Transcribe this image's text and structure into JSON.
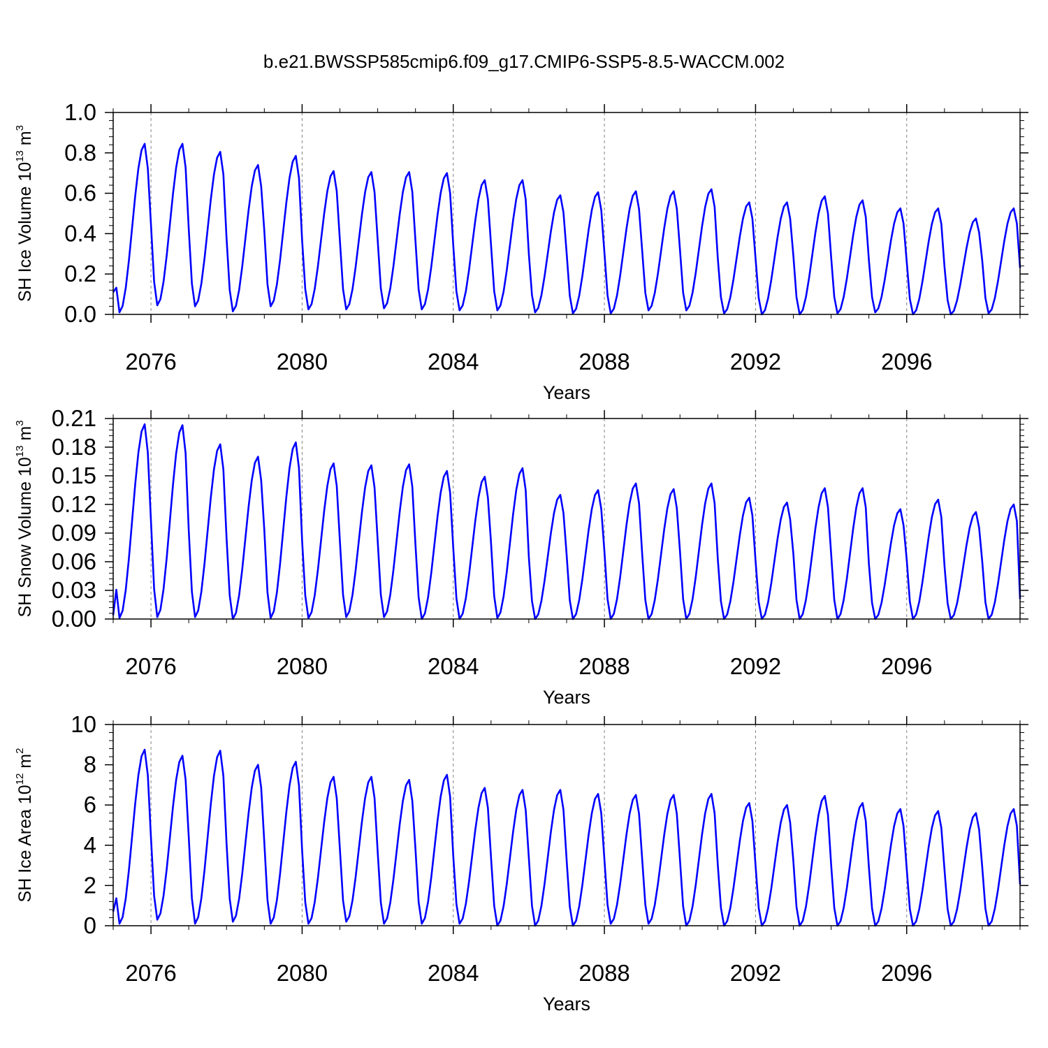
{
  "figure": {
    "title": "b.e21.BWSSP585cmip6.f09_g17.CMIP6-SSP5-8.5-WACCM.002"
  },
  "colors": {
    "series": "#0000ff",
    "axis": "#000000",
    "grid": "#808080",
    "background": "#ffffff"
  },
  "chart_data": [
    {
      "type": "line",
      "title": "b.e21.BWSSP585cmip6.f09_g17.CMIP6-SSP5-8.5-WACCM.002",
      "xlabel": "Years",
      "ylabel": {
        "prefix": "SH Ice Volume 10",
        "exponent": "13",
        "unit": " m",
        "unit_exponent": "3"
      },
      "xlim": [
        2075,
        2099
      ],
      "ylim": [
        0,
        1.0
      ],
      "x_ticks": [
        2076,
        2080,
        2084,
        2088,
        2092,
        2096
      ],
      "y_ticks": [
        "0.0",
        "0.2",
        "0.4",
        "0.6",
        "0.8",
        "1.0"
      ],
      "grid": "vertical dashed at major x ticks",
      "x_start": 2075.0,
      "x_step_months": 1,
      "annual_peaks": [
        0.845,
        0.845,
        0.805,
        0.74,
        0.785,
        0.71,
        0.705,
        0.705,
        0.7,
        0.665,
        0.665,
        0.59,
        0.605,
        0.61,
        0.61,
        0.62,
        0.555,
        0.555,
        0.585,
        0.565,
        0.525,
        0.525,
        0.475,
        0.525
      ],
      "annual_minima": [
        0.01,
        0.045,
        0.04,
        0.015,
        0.04,
        0.025,
        0.025,
        0.03,
        0.025,
        0.02,
        0.02,
        0.01,
        0.005,
        0.005,
        0.02,
        0.02,
        0.005,
        0.0,
        0.0,
        0.005,
        0.01,
        0.0,
        0.0,
        0.005
      ],
      "first_value": 0.11,
      "last_value": 0.23
    },
    {
      "type": "line",
      "xlabel": "Years",
      "ylabel": {
        "prefix": "SH Snow Volume 10",
        "exponent": "13",
        "unit": " m",
        "unit_exponent": "3"
      },
      "xlim": [
        2075,
        2099
      ],
      "ylim": [
        0,
        0.21
      ],
      "x_ticks": [
        2076,
        2080,
        2084,
        2088,
        2092,
        2096
      ],
      "y_ticks": [
        "0.00",
        "0.03",
        "0.06",
        "0.09",
        "0.12",
        "0.15",
        "0.18",
        "0.21"
      ],
      "grid": "vertical dashed at major x ticks",
      "x_start": 2075.0,
      "x_step_months": 1,
      "annual_peaks": [
        0.204,
        0.203,
        0.183,
        0.17,
        0.185,
        0.163,
        0.161,
        0.162,
        0.155,
        0.149,
        0.158,
        0.13,
        0.135,
        0.142,
        0.136,
        0.142,
        0.127,
        0.122,
        0.137,
        0.137,
        0.115,
        0.125,
        0.112,
        0.12
      ],
      "annual_minima": [
        0.001,
        0.002,
        0.002,
        0.0,
        0.001,
        0.001,
        0.002,
        0.002,
        0.0,
        0.0,
        0.001,
        0.0,
        0.0,
        0.0,
        0.0,
        0.0,
        0.0,
        0.0,
        0.0,
        0.0,
        0.0,
        0.0,
        0.0,
        0.0
      ],
      "first_value": 0.004,
      "last_value": 0.021
    },
    {
      "type": "line",
      "xlabel": "Years",
      "ylabel": {
        "prefix": "SH Ice Area 10",
        "exponent": "12",
        "unit": " m",
        "unit_exponent": "2"
      },
      "xlim": [
        2075,
        2099
      ],
      "ylim": [
        0,
        10
      ],
      "x_ticks": [
        2076,
        2080,
        2084,
        2088,
        2092,
        2096
      ],
      "y_ticks": [
        "0",
        "2",
        "4",
        "6",
        "8",
        "10"
      ],
      "grid": "vertical dashed at major x ticks",
      "x_start": 2075.0,
      "x_step_months": 1,
      "annual_peaks": [
        8.75,
        8.45,
        8.7,
        8.0,
        8.15,
        7.4,
        7.4,
        7.25,
        7.5,
        6.85,
        6.75,
        6.75,
        6.55,
        6.5,
        6.5,
        6.55,
        6.1,
        6.0,
        6.45,
        6.1,
        5.8,
        5.7,
        5.6,
        5.8
      ],
      "annual_minima": [
        0.1,
        0.3,
        0.1,
        0.2,
        0.1,
        0.1,
        0.2,
        0.1,
        0.1,
        0.1,
        0.0,
        0.0,
        0.0,
        0.1,
        0.1,
        0.0,
        0.0,
        0.0,
        0.0,
        0.0,
        0.0,
        0.0,
        0.0,
        0.0
      ],
      "first_value": 0.7,
      "last_value": 2.05
    }
  ]
}
